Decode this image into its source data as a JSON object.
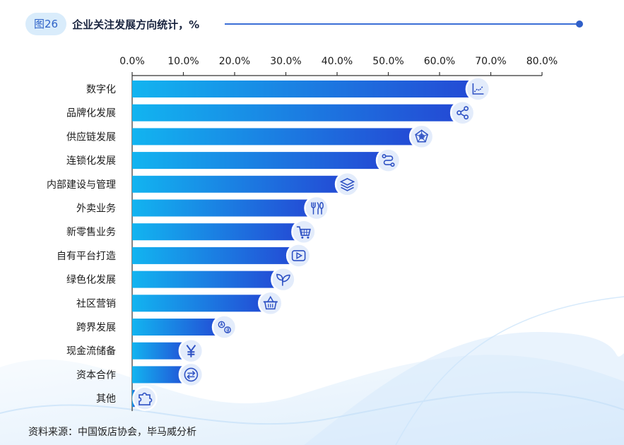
{
  "header": {
    "figure_label": "图26",
    "title": "企业关注发展方向统计，%"
  },
  "source": "资料来源：中国饭店协会，毕马威分析",
  "colors": {
    "bar_start": "#12b4f0",
    "bar_end": "#2448d4",
    "icon_fill": "#e3ecfb",
    "icon_stroke": "#2f52c4"
  },
  "chart_data": {
    "type": "bar",
    "orientation": "horizontal",
    "title": "企业关注发展方向统计，%",
    "xlabel": "",
    "ylabel": "",
    "xlim": [
      0,
      80
    ],
    "grid": false,
    "x_ticks": [
      "0.0%",
      "10.0%",
      "20.0%",
      "30.0%",
      "40.0%",
      "50.0%",
      "60.0%",
      "70.0%",
      "80.0%"
    ],
    "tick_values": [
      0,
      10,
      20,
      30,
      40,
      50,
      60,
      70,
      80
    ],
    "categories": [
      "数字化",
      "品牌化发展",
      "供应链发展",
      "连锁化发展",
      "内部建设与管理",
      "外卖业务",
      "新零售业务",
      "自有平台打造",
      "绿色化发展",
      "社区营销",
      "跨界发展",
      "现金流储备",
      "资本合作",
      "其他"
    ],
    "values": [
      67.5,
      64.5,
      56.5,
      50.0,
      42.0,
      36.0,
      33.5,
      32.5,
      29.5,
      27.0,
      18.0,
      11.5,
      11.5,
      0.5
    ],
    "icons": [
      "chart-trend-icon",
      "share-icon",
      "radar-icon",
      "route-icon",
      "layers-icon",
      "cutlery-icon",
      "cart-icon",
      "play-icon",
      "sprout-icon",
      "basket-icon",
      "exchange-coins-icon",
      "yen-icon",
      "exchange-arrows-icon",
      "puzzle-icon"
    ]
  }
}
